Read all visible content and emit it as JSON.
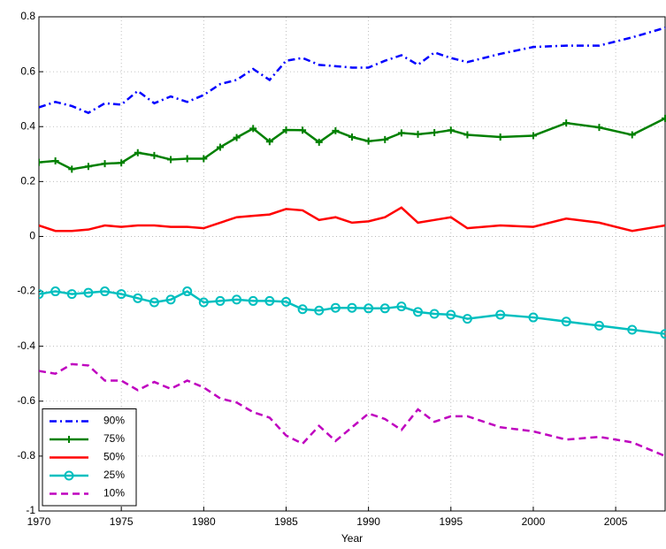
{
  "chart_data": {
    "type": "line",
    "xlabel": "Year",
    "x": [
      1970,
      1971,
      1972,
      1973,
      1974,
      1975,
      1976,
      1977,
      1978,
      1979,
      1980,
      1981,
      1982,
      1983,
      1984,
      1985,
      1986,
      1987,
      1988,
      1989,
      1990,
      1991,
      1992,
      1993,
      1994,
      1995,
      1996,
      1998,
      2000,
      2002,
      2004,
      2006,
      2008
    ],
    "series": [
      {
        "name": "90%",
        "color": "#0000ff",
        "dash": "dashdot",
        "marker": "none",
        "values": [
          0.47,
          0.49,
          0.475,
          0.45,
          0.485,
          0.48,
          0.53,
          0.485,
          0.51,
          0.49,
          0.515,
          0.555,
          0.57,
          0.61,
          0.57,
          0.64,
          0.65,
          0.625,
          0.62,
          0.615,
          0.615,
          0.64,
          0.66,
          0.625,
          0.67,
          0.65,
          0.635,
          0.665,
          0.69,
          0.695,
          0.695,
          0.725,
          0.76
        ]
      },
      {
        "name": "75%",
        "color": "#008000",
        "dash": "solid",
        "marker": "plus",
        "values": [
          0.27,
          0.275,
          0.245,
          0.255,
          0.265,
          0.268,
          0.305,
          0.295,
          0.28,
          0.283,
          0.283,
          0.325,
          0.36,
          0.393,
          0.345,
          0.388,
          0.387,
          0.343,
          0.385,
          0.362,
          0.347,
          0.353,
          0.377,
          0.372,
          0.378,
          0.387,
          0.37,
          0.362,
          0.367,
          0.413,
          0.397,
          0.37,
          0.43
        ]
      },
      {
        "name": "50%",
        "color": "#ff0000",
        "dash": "solid",
        "marker": "none",
        "values": [
          0.04,
          0.02,
          0.02,
          0.025,
          0.04,
          0.035,
          0.04,
          0.04,
          0.035,
          0.035,
          0.03,
          0.05,
          0.07,
          0.075,
          0.08,
          0.1,
          0.095,
          0.06,
          0.07,
          0.05,
          0.055,
          0.07,
          0.105,
          0.05,
          0.06,
          0.07,
          0.03,
          0.04,
          0.035,
          0.065,
          0.05,
          0.02,
          0.04
        ]
      },
      {
        "name": "25%",
        "color": "#00bfbf",
        "dash": "solid",
        "marker": "circle",
        "values": [
          -0.21,
          -0.2,
          -0.21,
          -0.205,
          -0.2,
          -0.21,
          -0.225,
          -0.24,
          -0.23,
          -0.2,
          -0.24,
          -0.235,
          -0.23,
          -0.235,
          -0.235,
          -0.238,
          -0.265,
          -0.27,
          -0.26,
          -0.26,
          -0.262,
          -0.262,
          -0.255,
          -0.275,
          -0.282,
          -0.285,
          -0.3,
          -0.285,
          -0.295,
          -0.31,
          -0.325,
          -0.34,
          -0.355
        ]
      },
      {
        "name": "10%",
        "color": "#bf00bf",
        "dash": "dashed",
        "marker": "none",
        "values": [
          -0.49,
          -0.5,
          -0.465,
          -0.47,
          -0.525,
          -0.525,
          -0.56,
          -0.53,
          -0.555,
          -0.525,
          -0.55,
          -0.59,
          -0.605,
          -0.64,
          -0.66,
          -0.725,
          -0.755,
          -0.69,
          -0.745,
          -0.695,
          -0.645,
          -0.665,
          -0.705,
          -0.63,
          -0.675,
          -0.655,
          -0.655,
          -0.695,
          -0.71,
          -0.74,
          -0.73,
          -0.75,
          -0.8
        ]
      }
    ],
    "xlim": [
      1970,
      2008
    ],
    "xticks": [
      1970,
      1975,
      1980,
      1985,
      1990,
      1995,
      2000,
      2005
    ],
    "ylim": [
      -1,
      0.8
    ],
    "yticks": [
      -1,
      -0.8,
      -0.6,
      -0.4,
      -0.2,
      0,
      0.2,
      0.4,
      0.6,
      0.8
    ],
    "grid": true,
    "legend": "lower left"
  }
}
